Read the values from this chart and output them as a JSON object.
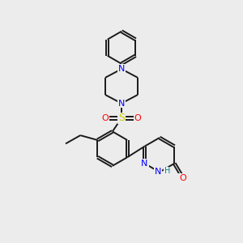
{
  "background_color": "#ececec",
  "bond_color": "#1a1a1a",
  "nitrogen_color": "#0000ff",
  "oxygen_color": "#ff0000",
  "sulfur_color": "#cccc00",
  "hydrogen_color": "#008888",
  "line_width": 1.4,
  "figsize": [
    3.0,
    3.0
  ],
  "dpi": 100,
  "xlim": [
    0,
    10
  ],
  "ylim": [
    0,
    10
  ]
}
